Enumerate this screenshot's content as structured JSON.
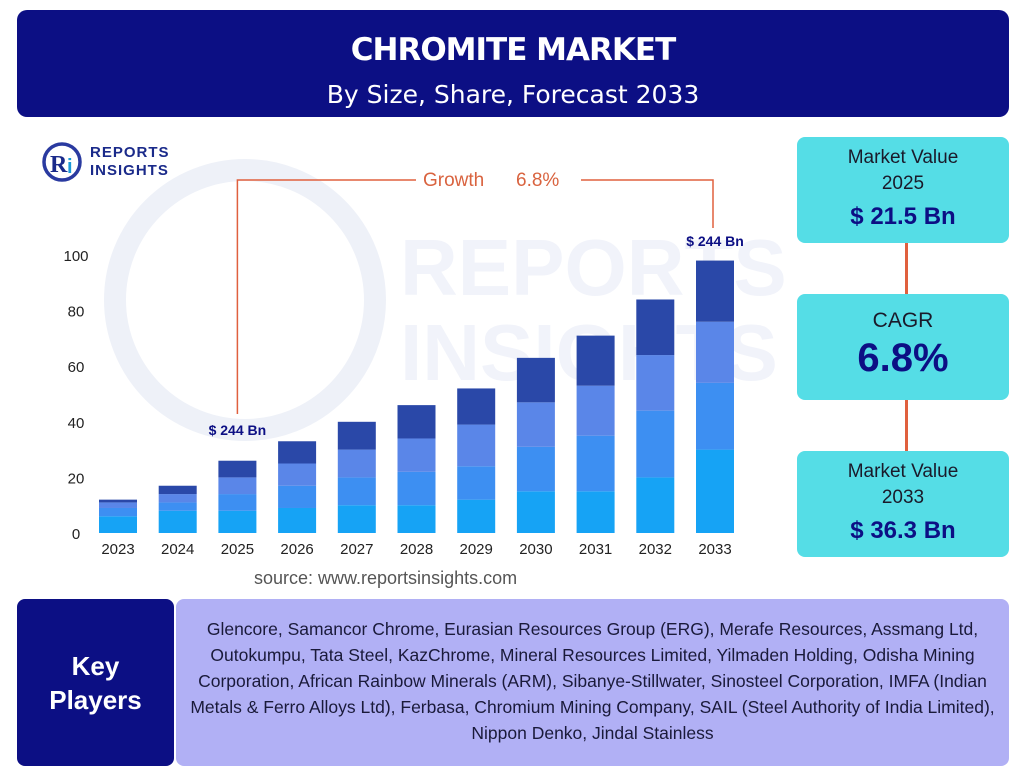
{
  "header": {
    "title": "CHROMITE MARKET",
    "subtitle": "By Size, Share, Forecast 2033"
  },
  "logo": {
    "mark": "Ri",
    "line1": "REPORTS",
    "line2": "INSIGHTS"
  },
  "chart_data": {
    "type": "bar",
    "stacked": true,
    "categories": [
      "2023",
      "2024",
      "2025",
      "2026",
      "2027",
      "2028",
      "2029",
      "2030",
      "2031",
      "2032",
      "2033"
    ],
    "series": [
      {
        "color": "#16a3f5",
        "values": [
          6,
          8,
          8,
          9,
          10,
          10,
          12,
          15,
          15,
          20,
          30
        ]
      },
      {
        "color": "#3d8ff2",
        "values": [
          3,
          3,
          6,
          8,
          10,
          12,
          12,
          16,
          20,
          24,
          24
        ]
      },
      {
        "color": "#5a86e8",
        "values": [
          2,
          3,
          6,
          8,
          10,
          12,
          15,
          16,
          18,
          20,
          22
        ]
      },
      {
        "color": "#2a48a8",
        "values": [
          1,
          3,
          6,
          8,
          10,
          12,
          13,
          16,
          18,
          20,
          22
        ]
      }
    ],
    "ylim": [
      0,
      100
    ],
    "yticks": [
      0,
      20,
      40,
      60,
      80,
      100
    ],
    "annotations": {
      "start_label": "$ 244 Bn",
      "end_label": "$ 244 Bn",
      "growth_label": "Growth",
      "growth_value": "6.8%"
    },
    "grid": false
  },
  "cards": {
    "market_value_2025": {
      "label": "Market Value 2025",
      "value": "$ 21.5 Bn"
    },
    "cagr": {
      "label": "CAGR",
      "value": "6.8%"
    },
    "market_value_2033": {
      "label": "Market Value 2033",
      "value": "$ 36.3 Bn"
    }
  },
  "source": "source: www.reportsinsights.com",
  "key_players": {
    "heading_line1": "Key",
    "heading_line2": "Players",
    "text": "Glencore, Samancor Chrome, Eurasian Resources Group (ERG), Merafe Resources, Assmang Ltd, Outokumpu, Tata Steel, KazChrome, Mineral Resources Limited, Yilmaden Holding, Odisha Mining Corporation, African Rainbow Minerals (ARM), Sibanye-Stillwater, Sinosteel Corporation, IMFA (Indian Metals & Ferro Alloys Ltd), Ferbasa, Chromium Mining Company, SAIL (Steel Authority of India Limited), Nippon Denko, Jindal Stainless"
  },
  "colors": {
    "navy": "#0c0f84",
    "cyan_card": "#55dde6",
    "lavender": "#b1b0f5",
    "growth_line": "#e0603e"
  }
}
